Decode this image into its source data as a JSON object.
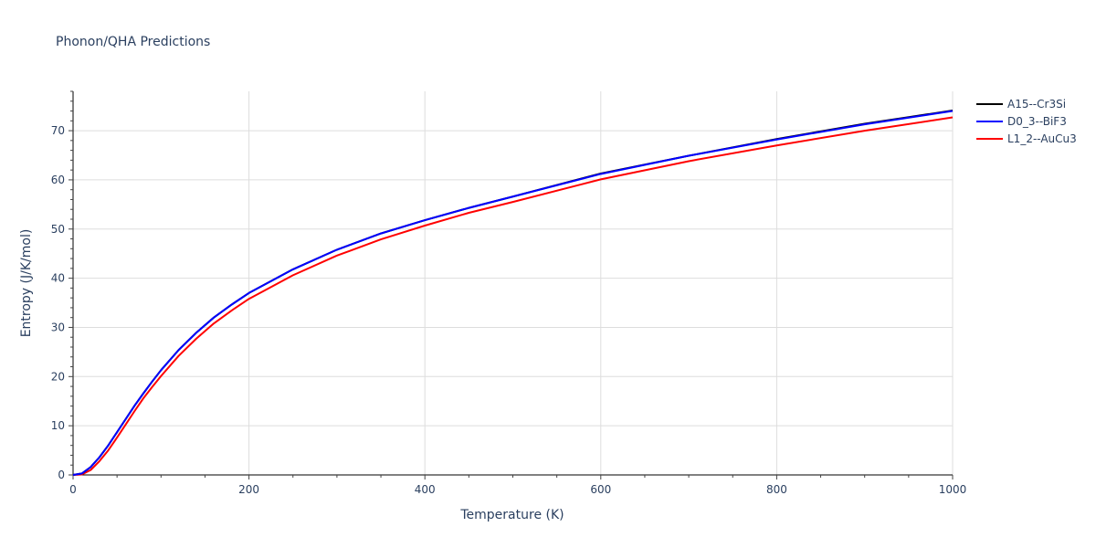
{
  "chart_data": {
    "type": "line",
    "title": "Phonon/QHA Predictions",
    "xlabel": "Temperature (K)",
    "ylabel": "Entropy (J/K/mol)",
    "xlim": [
      0,
      1000
    ],
    "ylim": [
      0,
      78
    ],
    "x_ticks": [
      "0",
      "200",
      "400",
      "600",
      "800",
      "1000"
    ],
    "y_ticks": [
      "0",
      "10",
      "20",
      "30",
      "40",
      "50",
      "60",
      "70"
    ],
    "grid": true,
    "legend_position": "top-right",
    "series": [
      {
        "name": "A15--Cr3Si",
        "color": "#000000",
        "x": [
          0,
          10,
          20,
          30,
          40,
          50,
          60,
          70,
          80,
          90,
          100,
          120,
          140,
          160,
          180,
          200,
          250,
          300,
          350,
          400,
          450,
          500,
          600,
          700,
          800,
          900,
          1000
        ],
        "y": [
          0,
          0.3,
          1.6,
          3.6,
          6.0,
          8.7,
          11.4,
          14.1,
          16.6,
          19.0,
          21.3,
          25.4,
          28.9,
          32.0,
          34.6,
          37.0,
          41.8,
          45.8,
          49.1,
          51.8,
          54.3,
          56.6,
          61.3,
          64.9,
          68.3,
          71.4,
          74.1
        ]
      },
      {
        "name": "D0_3--BiF3",
        "color": "#0000ff",
        "x": [
          0,
          10,
          20,
          30,
          40,
          50,
          60,
          70,
          80,
          90,
          100,
          120,
          140,
          160,
          180,
          200,
          250,
          300,
          350,
          400,
          450,
          500,
          600,
          700,
          800,
          900,
          1000
        ],
        "y": [
          0,
          0.3,
          1.6,
          3.6,
          6.0,
          8.7,
          11.4,
          14.1,
          16.6,
          19.0,
          21.3,
          25.4,
          28.9,
          32.0,
          34.6,
          37.0,
          41.8,
          45.8,
          49.1,
          51.8,
          54.3,
          56.6,
          61.2,
          64.9,
          68.2,
          71.3,
          74.0
        ]
      },
      {
        "name": "L1_2--AuCu3",
        "color": "#ff0000",
        "x": [
          0,
          10,
          20,
          30,
          40,
          50,
          60,
          70,
          80,
          90,
          100,
          120,
          140,
          160,
          180,
          200,
          250,
          300,
          350,
          400,
          450,
          500,
          600,
          700,
          800,
          900,
          1000
        ],
        "y": [
          0,
          0.1,
          1.0,
          2.8,
          5.0,
          7.6,
          10.3,
          13.0,
          15.6,
          17.9,
          20.1,
          24.2,
          27.7,
          30.8,
          33.4,
          35.8,
          40.6,
          44.6,
          47.9,
          50.7,
          53.3,
          55.5,
          60.1,
          63.8,
          67.0,
          70.0,
          72.7
        ]
      }
    ]
  }
}
